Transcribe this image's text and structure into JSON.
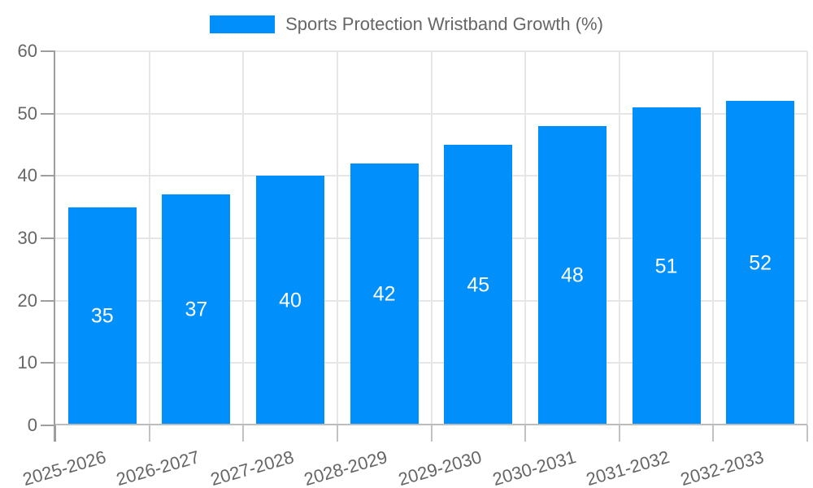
{
  "legend": {
    "label": "Sports Protection Wristband Growth (%)"
  },
  "colors": {
    "bar": "#008FFB",
    "grid": "#e6e6e6",
    "y_axis": "#9e9e9e",
    "x_axis": "#bdbdbd",
    "tick": "#c2c2c2",
    "label_text": "#666666",
    "value_text": "#ffffff",
    "background": "#ffffff"
  },
  "chart_data": {
    "type": "bar",
    "title": "Sports Protection Wristband Growth (%)",
    "categories": [
      "2025-2026",
      "2026-2027",
      "2027-2028",
      "2028-2029",
      "2029-2030",
      "2030-2031",
      "2031-2032",
      "2032-2033"
    ],
    "series": [
      {
        "name": "Sports Protection Wristband Growth (%)",
        "values": [
          35,
          37,
          40,
          42,
          45,
          48,
          51,
          52
        ]
      }
    ],
    "xlabel": "",
    "ylabel": "",
    "ylim": [
      0,
      60
    ],
    "yticks": [
      0,
      10,
      20,
      30,
      40,
      50,
      60
    ],
    "grid": true,
    "legend_position": "top",
    "value_label_position": "inside-center",
    "x_tick_rotation_deg": 16
  }
}
